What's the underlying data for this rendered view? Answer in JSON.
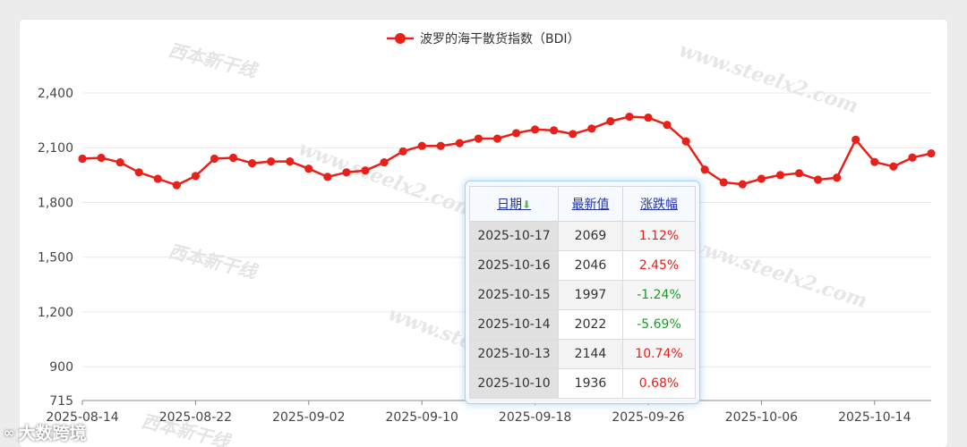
{
  "chart_data": {
    "type": "line",
    "legend": "波罗的海干散货指数（BDI）",
    "color": "#e8201a",
    "y_ticks": [
      "2,400",
      "2,100",
      "1,800",
      "1,500",
      "1,200",
      "900",
      "715"
    ],
    "y_tick_values": [
      2400,
      2100,
      1800,
      1500,
      1200,
      900,
      715
    ],
    "ylim": [
      715,
      2520
    ],
    "grid": true,
    "legend_position": "top",
    "x_ticks": [
      "2025-08-14",
      "2025-08-22",
      "2025-09-02",
      "2025-09-10",
      "2025-09-18",
      "2025-09-26",
      "2025-10-06",
      "2025-10-14"
    ],
    "x_tick_positions": [
      0,
      6,
      12,
      18,
      24,
      30,
      36,
      42
    ],
    "series": [
      {
        "name": "波罗的海干散货指数（BDI）",
        "values": [
          2040,
          2045,
          2020,
          1965,
          1930,
          1895,
          1945,
          2040,
          2045,
          2015,
          2025,
          2025,
          1985,
          1940,
          1965,
          1975,
          2020,
          2080,
          2110,
          2110,
          2125,
          2150,
          2150,
          2180,
          2200,
          2195,
          2175,
          2205,
          2245,
          2270,
          2265,
          2225,
          2135,
          1980,
          1910,
          1900,
          1930,
          1950,
          1960,
          1925,
          1936,
          2144,
          2022,
          1997,
          2046,
          2069
        ]
      }
    ]
  },
  "tooltip": {
    "headers": {
      "date": "日期",
      "value": "最新值",
      "change": "涨跌幅"
    },
    "sort_icon": "down-arrow-icon",
    "rows": [
      {
        "date": "2025-10-17",
        "value": "2069",
        "change": "1.12%",
        "dir": "up"
      },
      {
        "date": "2025-10-16",
        "value": "2046",
        "change": "2.45%",
        "dir": "up"
      },
      {
        "date": "2025-10-15",
        "value": "1997",
        "change": "-1.24%",
        "dir": "down"
      },
      {
        "date": "2025-10-14",
        "value": "2022",
        "change": "-5.69%",
        "dir": "down"
      },
      {
        "date": "2025-10-13",
        "value": "2144",
        "change": "10.74%",
        "dir": "up"
      },
      {
        "date": "2025-10-10",
        "value": "1936",
        "change": "0.68%",
        "dir": "up"
      }
    ]
  },
  "watermarks": {
    "url": "www.steelx2.com",
    "cn": "西本新干线"
  },
  "brand": {
    "name": "大数跨境",
    "logo": "∞"
  }
}
